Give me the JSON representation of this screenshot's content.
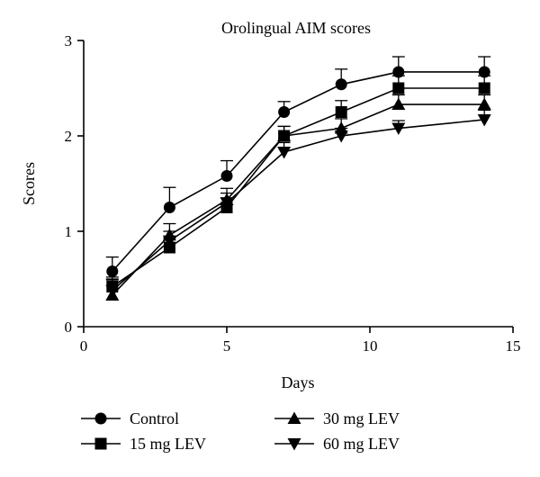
{
  "chart_data": {
    "type": "line",
    "title": "Orolingual AIM scores",
    "xlabel": "Days",
    "ylabel": "Scores",
    "xlim": [
      0,
      15
    ],
    "ylim": [
      0,
      3
    ],
    "xticks": [
      0,
      5,
      10,
      15
    ],
    "yticks": [
      0,
      1,
      2,
      3
    ],
    "grid": false,
    "legend_position": "bottom",
    "x": [
      1,
      3,
      5,
      7,
      9,
      11,
      14
    ],
    "series": [
      {
        "name": "Control",
        "marker": "circle",
        "values": [
          0.58,
          1.25,
          1.58,
          2.25,
          2.54,
          2.67,
          2.67
        ],
        "errors": [
          0.15,
          0.21,
          0.16,
          0.11,
          0.16,
          0.16,
          0.16
        ]
      },
      {
        "name": "15 mg LEV",
        "marker": "square",
        "values": [
          0.42,
          0.83,
          1.25,
          2.0,
          2.25,
          2.5,
          2.5
        ],
        "errors": [
          0.1,
          0.1,
          0.1,
          0.1,
          0.12,
          0.13,
          0.13
        ]
      },
      {
        "name": "30 mg LEV",
        "marker": "triangle-up",
        "values": [
          0.33,
          0.96,
          1.33,
          2.0,
          2.08,
          2.33,
          2.33
        ],
        "errors": [
          0.16,
          0.12,
          0.12,
          0.1,
          0.1,
          0.1,
          0.1
        ]
      },
      {
        "name": "60 mg LEV",
        "marker": "triangle-down",
        "values": [
          0.38,
          0.9,
          1.3,
          1.83,
          2.0,
          2.08,
          2.17
        ],
        "errors": [
          0.12,
          0.1,
          0.1,
          0.1,
          0.08,
          0.08,
          0.1
        ]
      }
    ]
  }
}
